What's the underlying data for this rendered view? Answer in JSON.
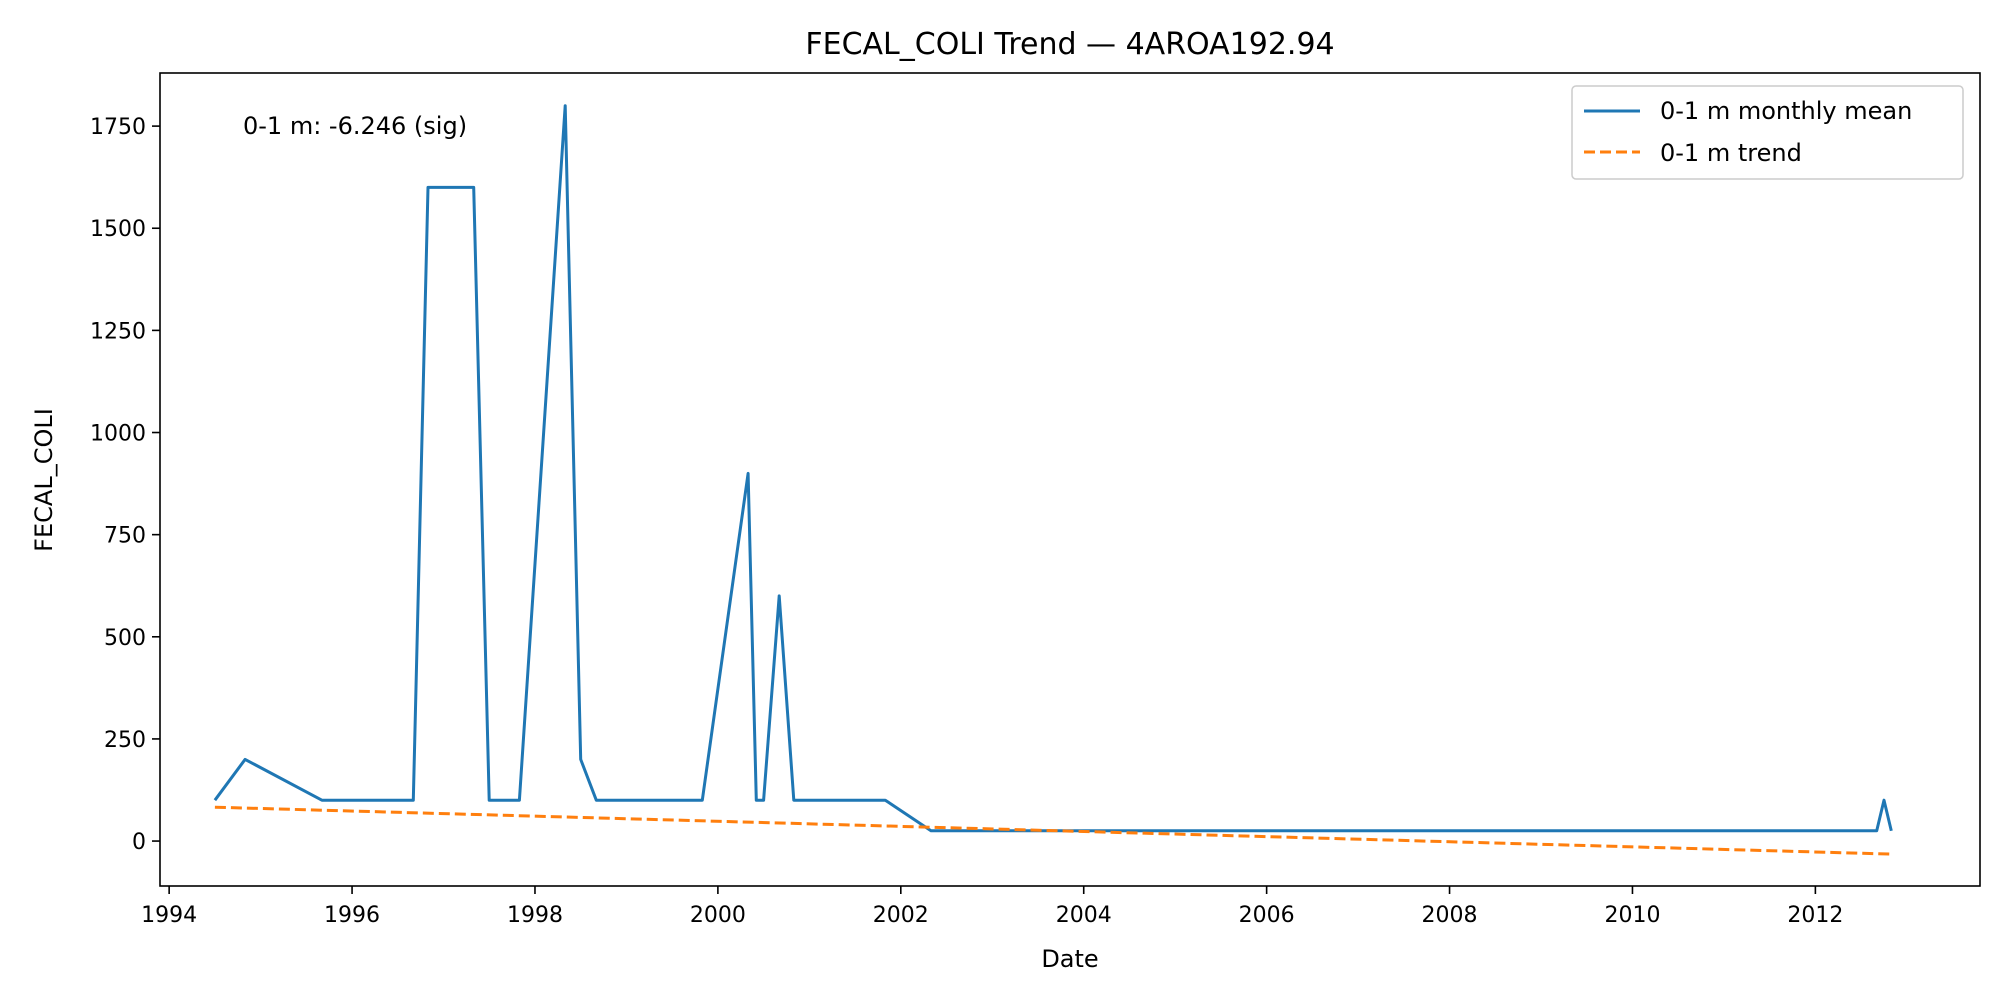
{
  "chart_data": {
    "type": "line",
    "title": "FECAL_COLI Trend — 4AROA192.94",
    "xlabel": "Date",
    "ylabel": "FECAL_COLI",
    "xlim": [
      1993.9,
      2013.8
    ],
    "ylim": [
      -110,
      1880
    ],
    "x_ticks": [
      1994,
      1996,
      1998,
      2000,
      2002,
      2004,
      2006,
      2008,
      2010,
      2012
    ],
    "y_ticks": [
      0,
      250,
      500,
      750,
      1000,
      1250,
      1500,
      1750
    ],
    "grid": false,
    "legend_position": "top-right",
    "annotation": "0-1 m: -6.246 (sig)",
    "colors": {
      "mean": "#1f77b4",
      "trend": "#ff7f0e"
    },
    "series": [
      {
        "name": "0-1 m monthly mean",
        "style": "solid",
        "x": [
          1994.5,
          1994.83,
          1995.67,
          1996.67,
          1996.83,
          1997.33,
          1997.5,
          1997.83,
          1998.33,
          1998.5,
          1998.67,
          1999.83,
          2000.33,
          2000.42,
          2000.5,
          2000.67,
          2000.83,
          2001.83,
          2002.33,
          2012.67,
          2012.75,
          2012.83
        ],
        "y": [
          100,
          200,
          100,
          100,
          1600,
          1600,
          100,
          100,
          1800,
          200,
          100,
          100,
          900,
          100,
          100,
          600,
          100,
          100,
          25,
          25,
          100,
          25
        ]
      },
      {
        "name": "0-1 m trend",
        "style": "dashed",
        "x": [
          1994.5,
          2012.83
        ],
        "y": [
          83,
          -32
        ]
      }
    ]
  }
}
